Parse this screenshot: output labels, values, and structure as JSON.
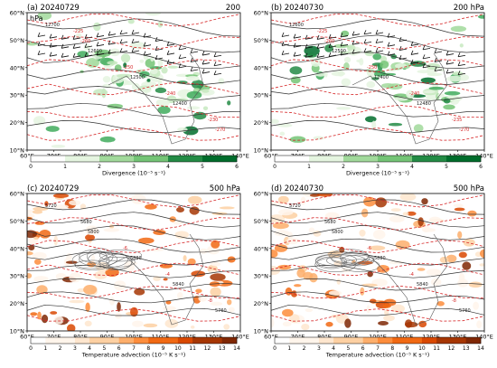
{
  "figure": {
    "panels": [
      {
        "tag": "(a) 20240729",
        "level": "200",
        "level_unit": "hPa",
        "field": "divergence",
        "colorbar": {
          "ticks": [
            "0",
            "1",
            "2",
            "3",
            "4",
            "5",
            "6"
          ],
          "label": "Divergence (10⁻⁵ s⁻¹)",
          "colors": [
            "#ffffff",
            "#e5f5e0",
            "#c7e9c0",
            "#a1d99b",
            "#74c476",
            "#41ab5d",
            "#238b45",
            "#006d2c"
          ]
        },
        "contour_labels": [
          "12700",
          "12600",
          "12500",
          "12400",
          "-270",
          "-260",
          "-250",
          "-240",
          "-230",
          "-225"
        ]
      },
      {
        "tag": "(b) 20240730",
        "level": "200 hPa",
        "level_unit": "",
        "field": "divergence",
        "colorbar": {
          "ticks": [
            "0",
            "1",
            "2",
            "3",
            "4",
            "5",
            "6"
          ],
          "label": "Divergence (10⁻⁵ s⁻¹)",
          "colors": [
            "#ffffff",
            "#e5f5e0",
            "#c7e9c0",
            "#a1d99b",
            "#74c476",
            "#41ab5d",
            "#238b45",
            "#006d2c"
          ]
        },
        "contour_labels": [
          "12600",
          "12500",
          "12400",
          "12480",
          "-270",
          "-260",
          "-250",
          "-240",
          "-235",
          "-225"
        ]
      },
      {
        "tag": "(c) 20240729",
        "level": "500 hPa",
        "level_unit": "",
        "field": "temperature_advection",
        "colorbar": {
          "ticks": [
            "0",
            "1",
            "2",
            "3",
            "4",
            "5",
            "6",
            "7",
            "8",
            "9",
            "10",
            "11",
            "12",
            "13",
            "14"
          ],
          "label": "Temperature advection (10⁻⁵ K s⁻¹)",
          "colors": [
            "#ffffff",
            "#fff5eb",
            "#fee6ce",
            "#fdd0a2",
            "#fdae6b",
            "#fd8d3c",
            "#f16913",
            "#d94801",
            "#a63603",
            "#7f2704"
          ]
        },
        "contour_labels": [
          "5720",
          "5800",
          "5880",
          "5840",
          "5760",
          "5680",
          "-6",
          "-4",
          "-8"
        ]
      },
      {
        "tag": "(d) 20240730",
        "level": "500 hPa",
        "level_unit": "",
        "field": "temperature_advection",
        "colorbar": {
          "ticks": [
            "0",
            "1",
            "2",
            "3",
            "4",
            "5",
            "6",
            "7",
            "8",
            "9",
            "10",
            "11",
            "12",
            "13",
            "14"
          ],
          "label": "Temperature advection (10⁻⁵ K s⁻¹)",
          "colors": [
            "#ffffff",
            "#fff5eb",
            "#fee6ce",
            "#fdd0a2",
            "#fdae6b",
            "#fd8d3c",
            "#f16913",
            "#d94801",
            "#a63603",
            "#7f2704"
          ]
        },
        "contour_labels": [
          "5720",
          "5800",
          "5880",
          "5840",
          "5760",
          "5680",
          "-6",
          "-4",
          "-8"
        ]
      }
    ],
    "lat_ticks": [
      "60°N",
      "50°N",
      "40°N",
      "30°N",
      "20°N",
      "10°N"
    ],
    "lon_ticks": [
      "60°E",
      "70°E",
      "80°E",
      "90°E",
      "100°E",
      "110°E",
      "120°E",
      "130°E",
      "140°E"
    ],
    "colors": {
      "geopotential_contour": "#333333",
      "temperature_contour": "#d62728",
      "wind_barb": "#111111",
      "coastline": "#555555",
      "frame": "#000000"
    }
  }
}
